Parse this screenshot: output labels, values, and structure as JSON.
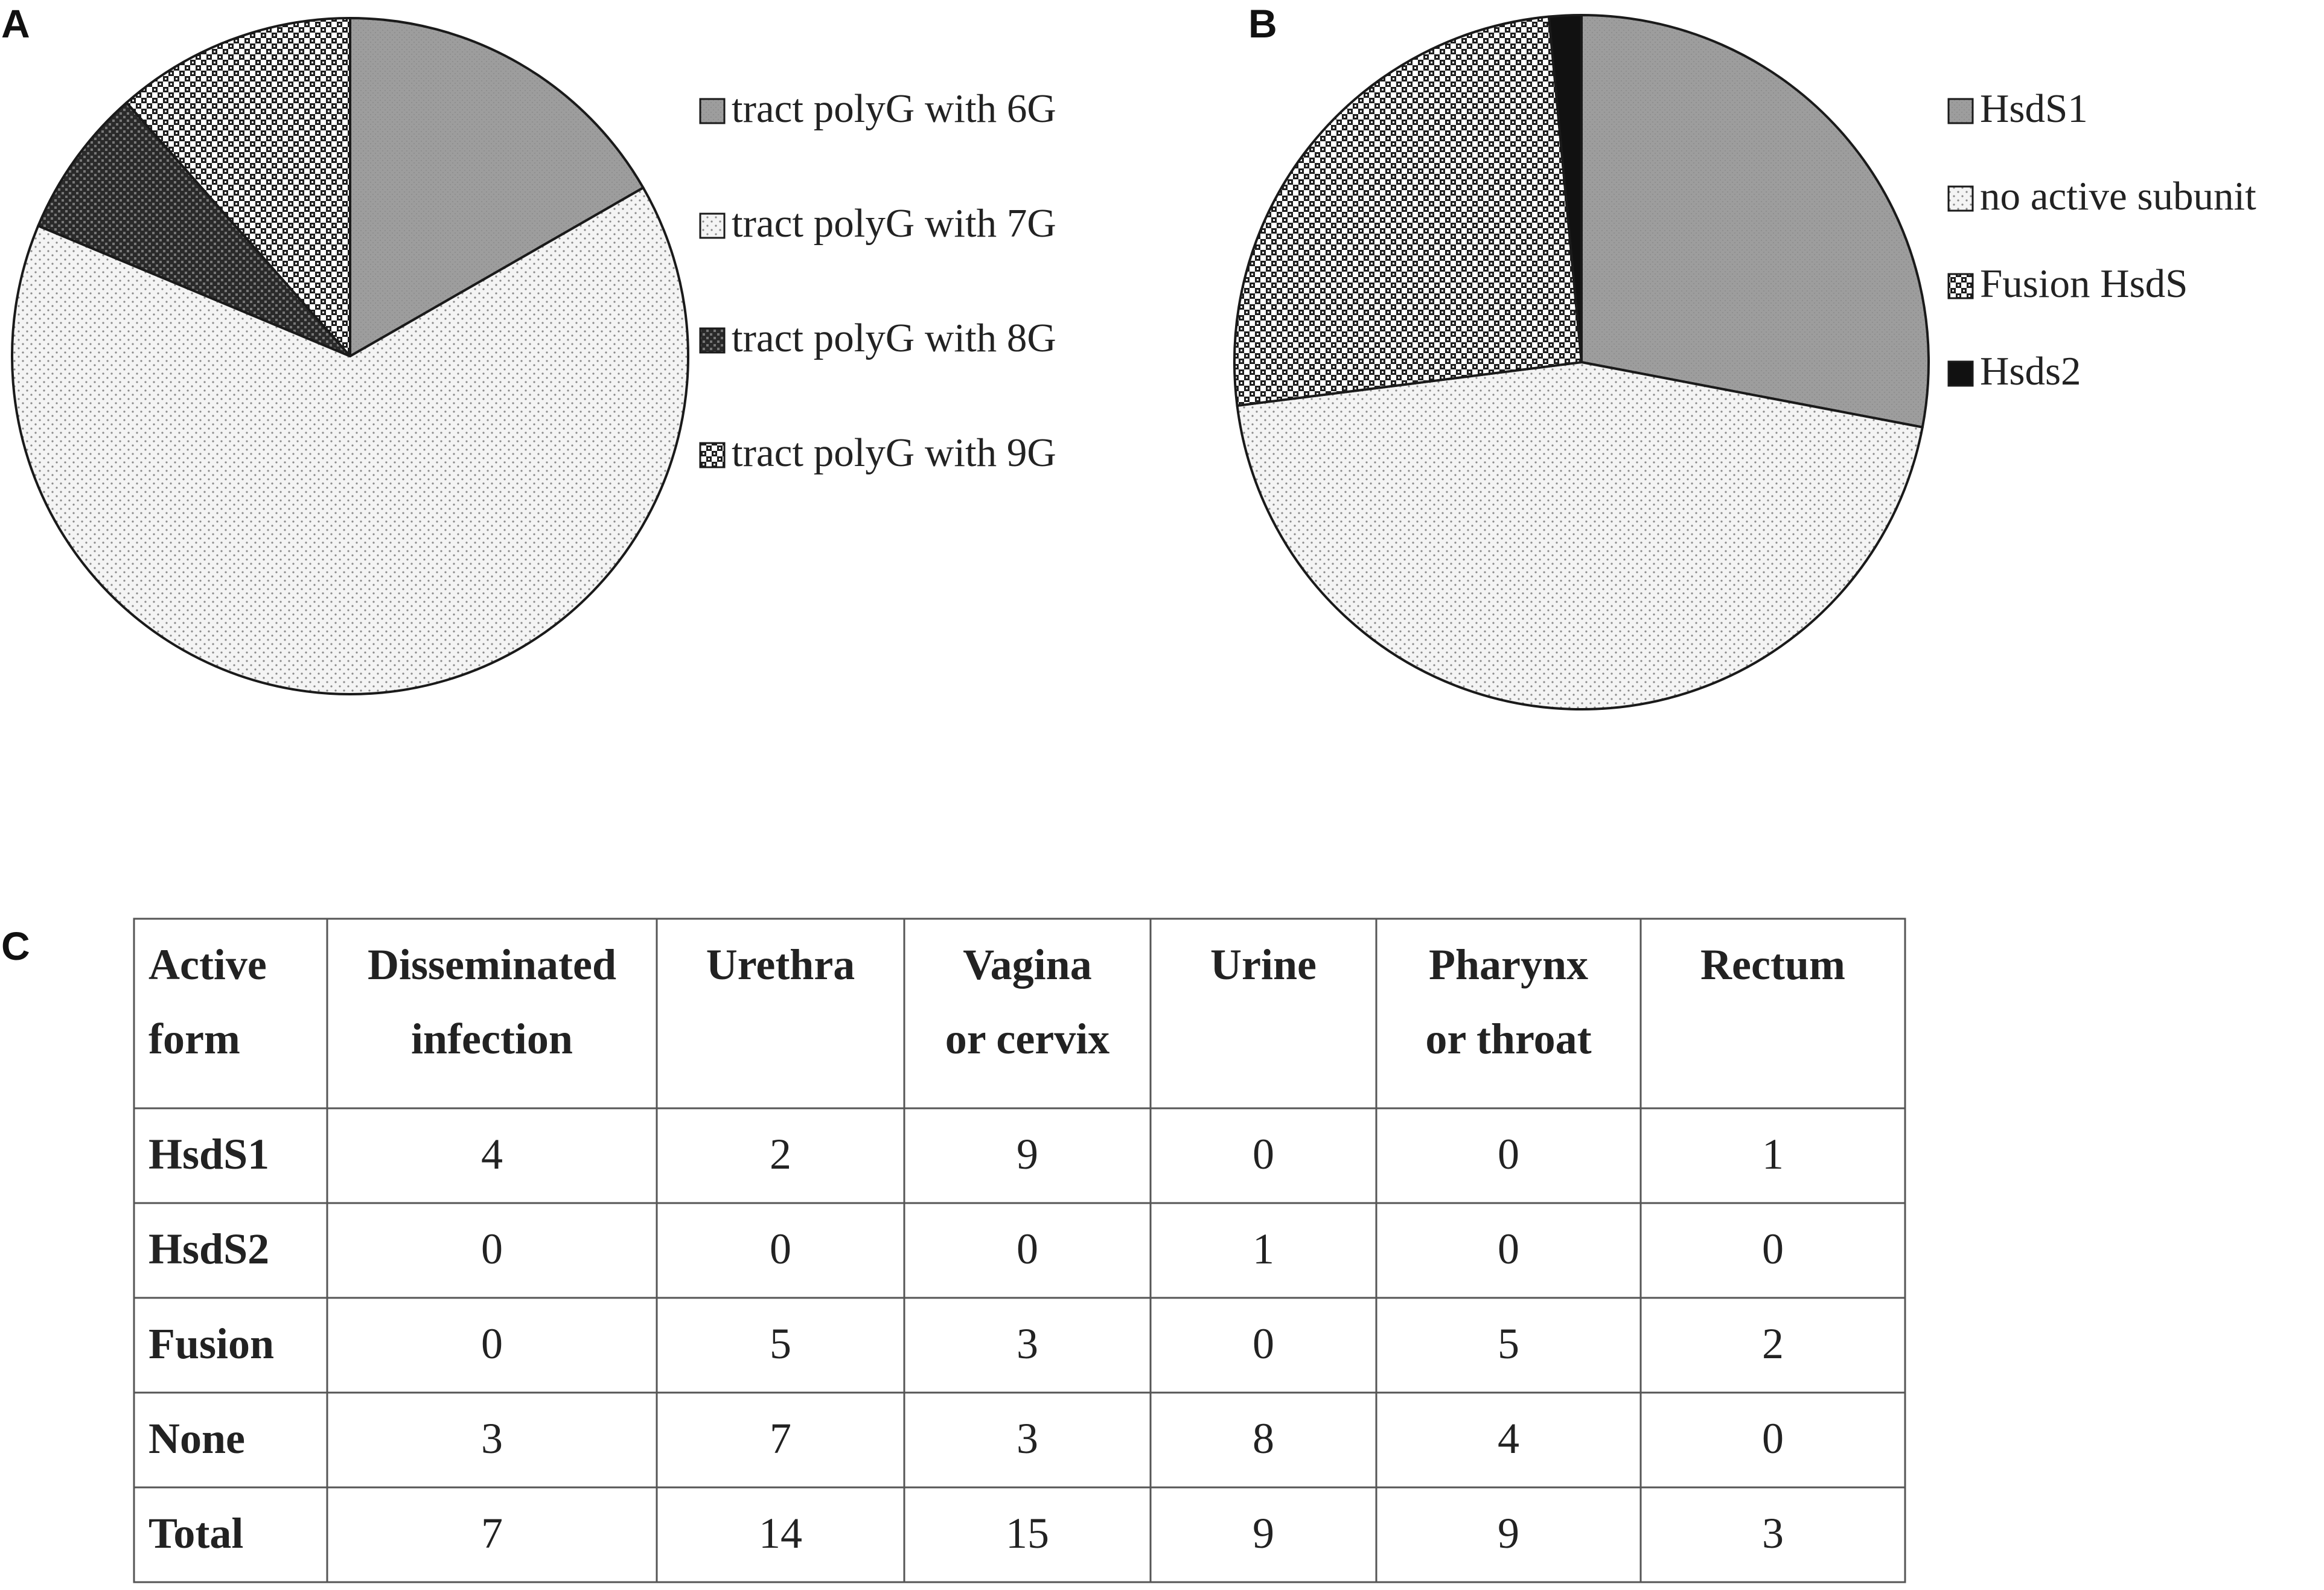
{
  "panels": {
    "a_letter": "A",
    "b_letter": "B",
    "c_letter": "C"
  },
  "colors": {
    "slice_dark_gray": "#9a9a9a",
    "slice_light_dots": "#f2f2f2",
    "slice_checker": "#2a2a2a",
    "slice_black": "#111111",
    "edge": "#1a1a1a"
  },
  "chart_data": [
    {
      "type": "pie",
      "title": "",
      "legend_position": "right",
      "labels": [
        "tract polyG with 6G",
        "tract polyG with 7G",
        "tract polyG with 8G",
        "tract polyG with 9G"
      ],
      "values": [
        16.7,
        64.6,
        7.2,
        11.5
      ],
      "unit": "%",
      "patterns": [
        "solid-gray",
        "light-dots",
        "dense-checker",
        "open-checker"
      ],
      "start_angle_deg": 0,
      "direction": "clockwise"
    },
    {
      "type": "pie",
      "title": "",
      "legend_position": "right",
      "labels": [
        "HsdS1",
        "no active subunit",
        "Fusion HsdS",
        "Hsds2"
      ],
      "values": [
        28.0,
        45.0,
        25.5,
        1.5
      ],
      "unit": "%",
      "patterns": [
        "solid-gray",
        "light-dots",
        "open-checker",
        "solid-black"
      ],
      "start_angle_deg": 0,
      "direction": "clockwise"
    },
    {
      "type": "table",
      "columns": [
        "Active form",
        "Disseminated infection",
        "Urethra",
        "Vagina or cervix",
        "Urine",
        "Pharynx or throat",
        "Rectum"
      ],
      "header_lines": [
        [
          "Active",
          "form"
        ],
        [
          "Disseminated",
          "infection"
        ],
        [
          "Urethra"
        ],
        [
          "Vagina",
          "or cervix"
        ],
        [
          "Urine"
        ],
        [
          "Pharynx",
          "or throat"
        ],
        [
          "Rectum"
        ]
      ],
      "rows": [
        {
          "label": "HsdS1",
          "values": [
            4,
            2,
            9,
            0,
            0,
            1
          ]
        },
        {
          "label": "HsdS2",
          "values": [
            0,
            0,
            0,
            1,
            0,
            0
          ]
        },
        {
          "label": "Fusion",
          "values": [
            0,
            5,
            3,
            0,
            5,
            2
          ]
        },
        {
          "label": "None",
          "values": [
            3,
            7,
            3,
            8,
            4,
            0
          ]
        },
        {
          "label": "Total",
          "values": [
            7,
            14,
            15,
            9,
            9,
            3
          ]
        }
      ]
    }
  ]
}
